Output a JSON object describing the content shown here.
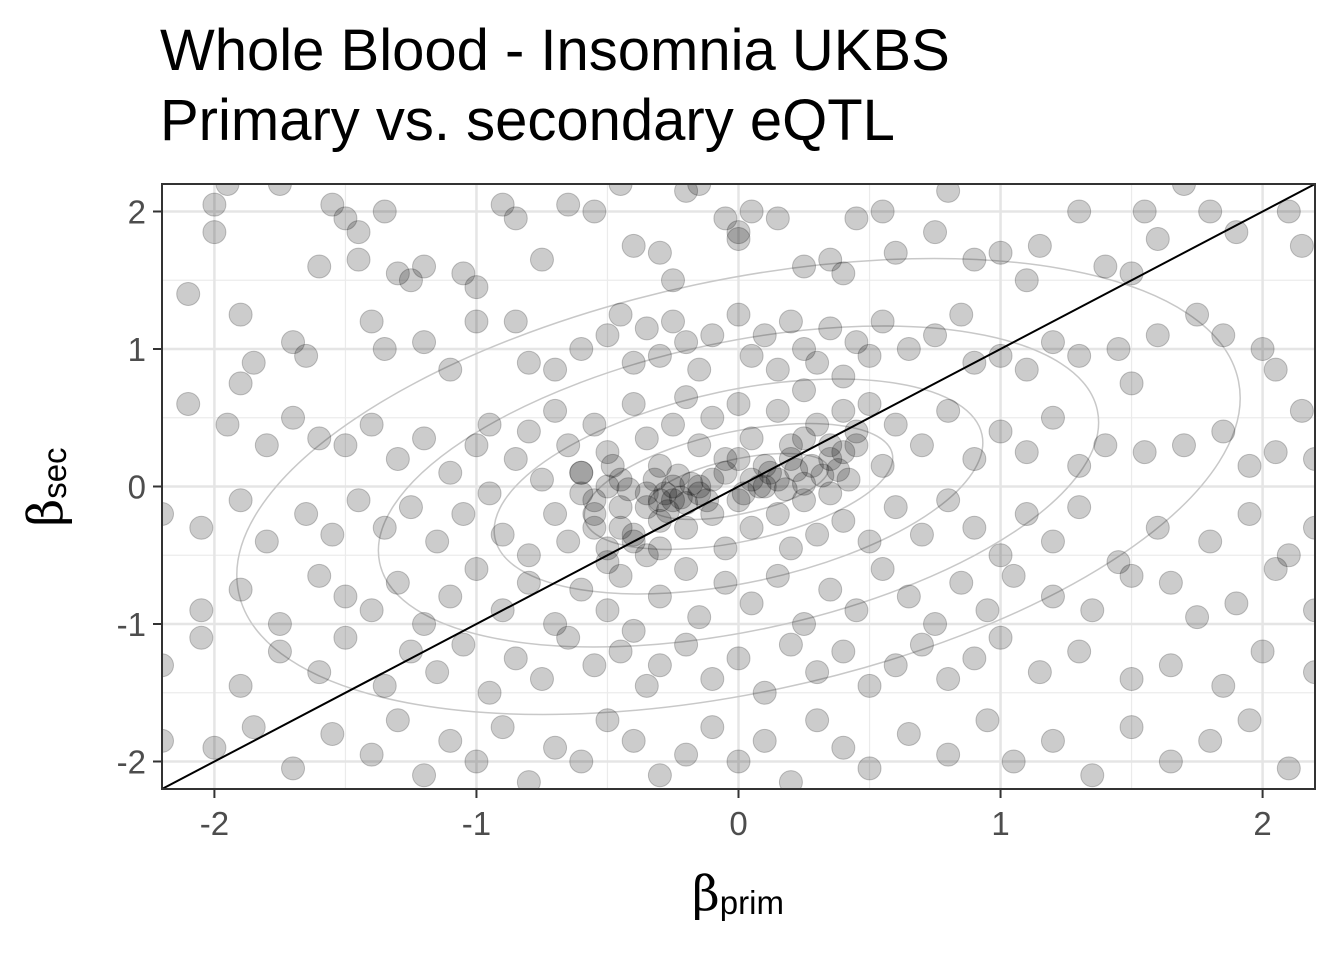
{
  "chart_data": {
    "type": "scatter",
    "title": "Whole Blood - Insomnia UKBS",
    "subtitle": "Primary vs. secondary eQTL",
    "xlabel": {
      "symbol": "β",
      "subscript": "prim"
    },
    "ylabel": {
      "symbol": "β",
      "subscript": "sec"
    },
    "xlim": [
      -2.2,
      2.2
    ],
    "ylim": [
      -2.2,
      2.2
    ],
    "x_ticks": [
      -2,
      -1,
      0,
      1,
      2
    ],
    "y_ticks": [
      -2,
      -1,
      0,
      1,
      2
    ],
    "x_tick_labels": [
      "-2",
      "-1",
      "0",
      "1",
      "2"
    ],
    "y_tick_labels": [
      "-2",
      "-1",
      "0",
      "1",
      "2"
    ],
    "grid": true,
    "reference_line": {
      "slope": 1,
      "intercept": 0
    },
    "density_contours": true,
    "point_color": "#000000",
    "point_alpha": 0.2,
    "points": [
      [
        -2.0,
        2.05
      ],
      [
        -2.0,
        1.85
      ],
      [
        -1.95,
        2.2
      ],
      [
        -1.75,
        2.2
      ],
      [
        -1.6,
        1.6
      ],
      [
        -1.55,
        2.05
      ],
      [
        -1.5,
        1.95
      ],
      [
        -1.45,
        1.85
      ],
      [
        -1.45,
        1.65
      ],
      [
        -1.35,
        2.0
      ],
      [
        -1.3,
        1.55
      ],
      [
        -1.25,
        1.5
      ],
      [
        -1.2,
        1.6
      ],
      [
        -1.05,
        1.55
      ],
      [
        -1.0,
        1.45
      ],
      [
        -0.9,
        2.05
      ],
      [
        -0.85,
        1.95
      ],
      [
        -0.75,
        1.65
      ],
      [
        -0.65,
        2.05
      ],
      [
        -0.55,
        2.0
      ],
      [
        -0.45,
        2.2
      ],
      [
        -0.4,
        1.75
      ],
      [
        -0.3,
        1.7
      ],
      [
        -0.25,
        1.5
      ],
      [
        -0.2,
        2.15
      ],
      [
        -0.15,
        2.2
      ],
      [
        -0.05,
        1.95
      ],
      [
        0.0,
        1.85
      ],
      [
        0.0,
        1.8
      ],
      [
        0.05,
        2.0
      ],
      [
        0.15,
        1.95
      ],
      [
        0.25,
        1.6
      ],
      [
        0.35,
        1.65
      ],
      [
        0.4,
        1.55
      ],
      [
        0.45,
        1.95
      ],
      [
        0.55,
        2.0
      ],
      [
        0.6,
        1.7
      ],
      [
        0.75,
        1.85
      ],
      [
        0.8,
        2.15
      ],
      [
        0.9,
        1.65
      ],
      [
        1.0,
        1.7
      ],
      [
        1.1,
        1.5
      ],
      [
        1.15,
        1.75
      ],
      [
        1.3,
        2.0
      ],
      [
        1.4,
        1.6
      ],
      [
        1.5,
        1.55
      ],
      [
        1.55,
        2.0
      ],
      [
        1.6,
        1.8
      ],
      [
        1.7,
        2.2
      ],
      [
        1.8,
        2.0
      ],
      [
        1.9,
        1.85
      ],
      [
        2.1,
        2.0
      ],
      [
        2.15,
        1.75
      ],
      [
        -2.1,
        1.4
      ],
      [
        -1.9,
        1.25
      ],
      [
        -1.85,
        0.9
      ],
      [
        -1.9,
        0.75
      ],
      [
        -1.7,
        1.05
      ],
      [
        -1.65,
        0.95
      ],
      [
        -1.4,
        1.2
      ],
      [
        -1.35,
        1.0
      ],
      [
        -1.2,
        1.05
      ],
      [
        -1.1,
        0.85
      ],
      [
        -1.0,
        1.2
      ],
      [
        -0.85,
        1.2
      ],
      [
        -0.8,
        0.9
      ],
      [
        -0.7,
        0.85
      ],
      [
        -0.6,
        1.0
      ],
      [
        -0.5,
        1.1
      ],
      [
        -0.45,
        1.25
      ],
      [
        -0.4,
        0.9
      ],
      [
        -0.35,
        1.15
      ],
      [
        -0.3,
        0.95
      ],
      [
        -0.25,
        1.2
      ],
      [
        -0.2,
        1.05
      ],
      [
        -0.15,
        0.85
      ],
      [
        -0.1,
        1.1
      ],
      [
        0.0,
        1.25
      ],
      [
        0.05,
        0.95
      ],
      [
        0.1,
        1.1
      ],
      [
        0.15,
        0.85
      ],
      [
        0.2,
        1.2
      ],
      [
        0.25,
        1.0
      ],
      [
        0.3,
        0.9
      ],
      [
        0.35,
        1.15
      ],
      [
        0.4,
        0.8
      ],
      [
        0.45,
        1.05
      ],
      [
        0.5,
        0.95
      ],
      [
        0.55,
        1.2
      ],
      [
        0.65,
        1.0
      ],
      [
        0.75,
        1.1
      ],
      [
        0.85,
        1.25
      ],
      [
        0.9,
        0.9
      ],
      [
        1.0,
        0.95
      ],
      [
        1.1,
        0.85
      ],
      [
        1.2,
        1.05
      ],
      [
        1.3,
        0.95
      ],
      [
        1.45,
        1.0
      ],
      [
        1.5,
        0.75
      ],
      [
        1.6,
        1.1
      ],
      [
        1.75,
        1.25
      ],
      [
        1.85,
        1.1
      ],
      [
        2.0,
        1.0
      ],
      [
        2.05,
        0.85
      ],
      [
        2.15,
        0.55
      ],
      [
        -2.1,
        0.6
      ],
      [
        -1.95,
        0.45
      ],
      [
        -1.8,
        0.3
      ],
      [
        -1.7,
        0.5
      ],
      [
        -1.6,
        0.35
      ],
      [
        -1.5,
        0.3
      ],
      [
        -1.4,
        0.45
      ],
      [
        -1.3,
        0.2
      ],
      [
        -1.2,
        0.35
      ],
      [
        -1.1,
        0.1
      ],
      [
        -1.0,
        0.3
      ],
      [
        -0.95,
        0.45
      ],
      [
        -0.85,
        0.2
      ],
      [
        -0.8,
        0.4
      ],
      [
        -0.75,
        0.05
      ],
      [
        -0.7,
        0.55
      ],
      [
        -0.65,
        0.3
      ],
      [
        -0.6,
        0.1
      ],
      [
        -0.55,
        0.45
      ],
      [
        -0.5,
        0.25
      ],
      [
        -0.45,
        0.05
      ],
      [
        -0.4,
        0.6
      ],
      [
        -0.35,
        0.35
      ],
      [
        -0.3,
        0.15
      ],
      [
        -0.25,
        0.45
      ],
      [
        -0.2,
        0.65
      ],
      [
        -0.15,
        0.3
      ],
      [
        -0.1,
        0.5
      ],
      [
        -0.05,
        0.2
      ],
      [
        0.0,
        0.6
      ],
      [
        0.05,
        0.35
      ],
      [
        0.1,
        0.15
      ],
      [
        0.15,
        0.55
      ],
      [
        0.2,
        0.3
      ],
      [
        0.25,
        0.7
      ],
      [
        0.3,
        0.45
      ],
      [
        0.35,
        0.2
      ],
      [
        0.4,
        0.55
      ],
      [
        0.45,
        0.3
      ],
      [
        0.5,
        0.6
      ],
      [
        0.55,
        0.15
      ],
      [
        0.6,
        0.45
      ],
      [
        0.7,
        0.3
      ],
      [
        0.8,
        0.55
      ],
      [
        0.9,
        0.2
      ],
      [
        1.0,
        0.4
      ],
      [
        1.1,
        0.25
      ],
      [
        1.2,
        0.5
      ],
      [
        1.3,
        0.15
      ],
      [
        1.4,
        0.3
      ],
      [
        1.55,
        0.25
      ],
      [
        1.7,
        0.3
      ],
      [
        1.85,
        0.4
      ],
      [
        1.95,
        0.15
      ],
      [
        2.05,
        0.25
      ],
      [
        2.2,
        0.2
      ],
      [
        -2.2,
        -0.2
      ],
      [
        -2.05,
        -0.3
      ],
      [
        -1.9,
        -0.1
      ],
      [
        -1.8,
        -0.4
      ],
      [
        -1.65,
        -0.2
      ],
      [
        -1.55,
        -0.35
      ],
      [
        -1.45,
        -0.1
      ],
      [
        -1.35,
        -0.3
      ],
      [
        -1.25,
        -0.15
      ],
      [
        -1.15,
        -0.4
      ],
      [
        -1.05,
        -0.2
      ],
      [
        -0.95,
        -0.05
      ],
      [
        -0.9,
        -0.35
      ],
      [
        -0.8,
        -0.5
      ],
      [
        -0.7,
        -0.2
      ],
      [
        -0.65,
        -0.4
      ],
      [
        -0.6,
        -0.05
      ],
      [
        -0.55,
        -0.3
      ],
      [
        -0.5,
        -0.55
      ],
      [
        -0.45,
        -0.15
      ],
      [
        -0.4,
        -0.35
      ],
      [
        -0.35,
        -0.05
      ],
      [
        -0.3,
        -0.25
      ],
      [
        -0.25,
        -0.1
      ],
      [
        -0.2,
        -0.3
      ],
      [
        -0.15,
        0.0
      ],
      [
        -0.1,
        -0.2
      ],
      [
        -0.05,
        -0.45
      ],
      [
        0.0,
        -0.1
      ],
      [
        0.05,
        -0.3
      ],
      [
        0.1,
        0.0
      ],
      [
        0.15,
        -0.2
      ],
      [
        0.2,
        -0.45
      ],
      [
        0.25,
        -0.1
      ],
      [
        0.3,
        -0.35
      ],
      [
        0.35,
        -0.05
      ],
      [
        0.4,
        -0.25
      ],
      [
        0.5,
        -0.4
      ],
      [
        0.6,
        -0.15
      ],
      [
        0.7,
        -0.35
      ],
      [
        0.8,
        -0.1
      ],
      [
        0.9,
        -0.3
      ],
      [
        1.0,
        -0.5
      ],
      [
        1.1,
        -0.2
      ],
      [
        1.2,
        -0.4
      ],
      [
        1.3,
        -0.15
      ],
      [
        1.45,
        -0.55
      ],
      [
        1.6,
        -0.3
      ],
      [
        1.8,
        -0.4
      ],
      [
        1.95,
        -0.2
      ],
      [
        2.1,
        -0.5
      ],
      [
        2.2,
        -0.3
      ],
      [
        -2.05,
        -0.9
      ],
      [
        -1.9,
        -0.75
      ],
      [
        -1.75,
        -1.0
      ],
      [
        -1.6,
        -0.65
      ],
      [
        -1.5,
        -0.8
      ],
      [
        -1.4,
        -0.9
      ],
      [
        -1.3,
        -0.7
      ],
      [
        -1.2,
        -1.0
      ],
      [
        -1.1,
        -0.8
      ],
      [
        -1.0,
        -0.6
      ],
      [
        -0.9,
        -0.9
      ],
      [
        -0.8,
        -0.7
      ],
      [
        -0.7,
        -1.0
      ],
      [
        -0.6,
        -0.75
      ],
      [
        -0.5,
        -0.9
      ],
      [
        -0.45,
        -0.65
      ],
      [
        -0.4,
        -1.05
      ],
      [
        -0.3,
        -0.8
      ],
      [
        -0.2,
        -0.6
      ],
      [
        -0.15,
        -0.95
      ],
      [
        -0.05,
        -0.7
      ],
      [
        0.05,
        -0.85
      ],
      [
        0.15,
        -0.65
      ],
      [
        0.25,
        -1.0
      ],
      [
        0.35,
        -0.75
      ],
      [
        0.45,
        -0.9
      ],
      [
        0.55,
        -0.6
      ],
      [
        0.65,
        -0.8
      ],
      [
        0.75,
        -1.0
      ],
      [
        0.85,
        -0.7
      ],
      [
        0.95,
        -0.9
      ],
      [
        1.05,
        -0.65
      ],
      [
        1.2,
        -0.8
      ],
      [
        1.35,
        -0.9
      ],
      [
        1.5,
        -0.65
      ],
      [
        1.65,
        -0.7
      ],
      [
        1.75,
        -0.95
      ],
      [
        1.9,
        -0.85
      ],
      [
        2.05,
        -0.6
      ],
      [
        2.2,
        -0.9
      ],
      [
        -2.2,
        -1.3
      ],
      [
        -2.05,
        -1.1
      ],
      [
        -1.9,
        -1.45
      ],
      [
        -1.75,
        -1.2
      ],
      [
        -1.6,
        -1.35
      ],
      [
        -1.5,
        -1.1
      ],
      [
        -1.35,
        -1.45
      ],
      [
        -1.25,
        -1.2
      ],
      [
        -1.15,
        -1.35
      ],
      [
        -1.05,
        -1.15
      ],
      [
        -0.95,
        -1.5
      ],
      [
        -0.85,
        -1.25
      ],
      [
        -0.75,
        -1.4
      ],
      [
        -0.65,
        -1.1
      ],
      [
        -0.55,
        -1.3
      ],
      [
        -0.45,
        -1.2
      ],
      [
        -0.35,
        -1.45
      ],
      [
        -0.3,
        -1.3
      ],
      [
        -0.2,
        -1.15
      ],
      [
        -0.1,
        -1.4
      ],
      [
        0.0,
        -1.25
      ],
      [
        0.1,
        -1.5
      ],
      [
        0.2,
        -1.15
      ],
      [
        0.3,
        -1.35
      ],
      [
        0.4,
        -1.2
      ],
      [
        0.5,
        -1.45
      ],
      [
        0.6,
        -1.3
      ],
      [
        0.7,
        -1.15
      ],
      [
        0.8,
        -1.4
      ],
      [
        0.9,
        -1.25
      ],
      [
        1.0,
        -1.1
      ],
      [
        1.15,
        -1.35
      ],
      [
        1.3,
        -1.2
      ],
      [
        1.5,
        -1.4
      ],
      [
        1.65,
        -1.3
      ],
      [
        1.85,
        -1.45
      ],
      [
        2.0,
        -1.2
      ],
      [
        2.2,
        -1.35
      ],
      [
        -2.2,
        -1.85
      ],
      [
        -2.0,
        -1.9
      ],
      [
        -1.85,
        -1.75
      ],
      [
        -1.7,
        -2.05
      ],
      [
        -1.55,
        -1.8
      ],
      [
        -1.4,
        -1.95
      ],
      [
        -1.3,
        -1.7
      ],
      [
        -1.2,
        -2.1
      ],
      [
        -1.1,
        -1.85
      ],
      [
        -1.0,
        -2.0
      ],
      [
        -0.9,
        -1.75
      ],
      [
        -0.8,
        -2.15
      ],
      [
        -0.7,
        -1.9
      ],
      [
        -0.6,
        -2.0
      ],
      [
        -0.5,
        -1.7
      ],
      [
        -0.4,
        -1.85
      ],
      [
        -0.3,
        -2.1
      ],
      [
        -0.2,
        -1.95
      ],
      [
        -0.1,
        -1.75
      ],
      [
        0.0,
        -2.0
      ],
      [
        0.1,
        -1.85
      ],
      [
        0.2,
        -2.15
      ],
      [
        0.3,
        -1.7
      ],
      [
        0.4,
        -1.9
      ],
      [
        0.5,
        -2.05
      ],
      [
        0.65,
        -1.8
      ],
      [
        0.8,
        -1.95
      ],
      [
        0.95,
        -1.7
      ],
      [
        1.05,
        -2.0
      ],
      [
        1.2,
        -1.85
      ],
      [
        1.35,
        -2.1
      ],
      [
        1.5,
        -1.75
      ],
      [
        1.65,
        -2.0
      ],
      [
        1.8,
        -1.85
      ],
      [
        1.95,
        -1.7
      ],
      [
        2.1,
        -2.05
      ],
      [
        -0.3,
        -0.1
      ],
      [
        -0.28,
        -0.05
      ],
      [
        -0.25,
        0.0
      ],
      [
        -0.22,
        -0.08
      ],
      [
        -0.2,
        -0.12
      ],
      [
        -0.18,
        0.02
      ],
      [
        -0.15,
        -0.05
      ],
      [
        -0.12,
        -0.1
      ],
      [
        -0.35,
        -0.15
      ],
      [
        -0.32,
        0.05
      ],
      [
        -0.27,
        -0.18
      ],
      [
        -0.23,
        0.08
      ],
      [
        -0.1,
        0.05
      ],
      [
        0.05,
        0.05
      ],
      [
        0.08,
        0.0
      ],
      [
        0.12,
        0.1
      ],
      [
        0.15,
        0.05
      ],
      [
        0.18,
        -0.02
      ],
      [
        0.22,
        0.12
      ],
      [
        0.25,
        0.02
      ],
      [
        0.28,
        0.15
      ],
      [
        0.32,
        0.08
      ],
      [
        0.38,
        0.12
      ],
      [
        0.42,
        0.05
      ],
      [
        -0.5,
        0.0
      ],
      [
        -0.55,
        -0.1
      ],
      [
        -0.6,
        0.1
      ],
      [
        -0.48,
        0.15
      ],
      [
        -0.42,
        -0.02
      ],
      [
        0.0,
        0.2
      ],
      [
        -0.05,
        0.1
      ],
      [
        0.02,
        -0.05
      ],
      [
        0.35,
        0.3
      ],
      [
        0.4,
        0.25
      ],
      [
        0.45,
        0.4
      ],
      [
        0.25,
        0.35
      ],
      [
        0.2,
        0.2
      ],
      [
        -0.4,
        -0.4
      ],
      [
        -0.45,
        -0.3
      ],
      [
        -0.35,
        -0.5
      ],
      [
        -0.5,
        -0.45
      ],
      [
        -0.3,
        -0.45
      ],
      [
        -0.55,
        -0.2
      ]
    ]
  }
}
